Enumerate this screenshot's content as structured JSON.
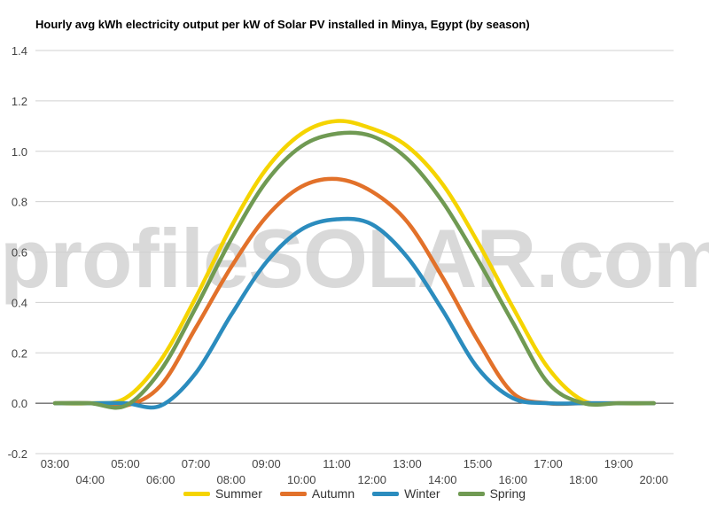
{
  "chart_data": {
    "type": "line",
    "title": "Hourly avg kWh electricity output per kW of Solar PV installed in Minya, Egypt (by season)",
    "watermark": "profileSOLAR.com",
    "ylim": [
      -0.2,
      1.4
    ],
    "y_ticks": [
      "1.4",
      "1.2",
      "1.0",
      "0.8",
      "0.6",
      "0.4",
      "0.2",
      "0.0",
      "-0.2"
    ],
    "x": [
      "03:00",
      "04:00",
      "05:00",
      "06:00",
      "07:00",
      "08:00",
      "09:00",
      "10:00",
      "11:00",
      "12:00",
      "13:00",
      "14:00",
      "15:00",
      "16:00",
      "17:00",
      "18:00",
      "19:00",
      "20:00"
    ],
    "series": [
      {
        "name": "Summer",
        "color": "#f5d400",
        "values": [
          0.0,
          0.0,
          0.02,
          0.17,
          0.42,
          0.7,
          0.93,
          1.07,
          1.12,
          1.09,
          1.02,
          0.87,
          0.64,
          0.38,
          0.14,
          0.01,
          0.0,
          0.0
        ]
      },
      {
        "name": "Autumn",
        "color": "#e2712a",
        "values": [
          0.0,
          0.0,
          -0.01,
          0.07,
          0.3,
          0.54,
          0.74,
          0.86,
          0.89,
          0.84,
          0.72,
          0.5,
          0.25,
          0.04,
          0.0,
          0.0,
          0.0,
          0.0
        ]
      },
      {
        "name": "Winter",
        "color": "#2b8cbe",
        "values": [
          0.0,
          0.0,
          0.0,
          -0.01,
          0.12,
          0.35,
          0.56,
          0.69,
          0.73,
          0.71,
          0.58,
          0.37,
          0.14,
          0.02,
          0.0,
          0.0,
          0.0,
          0.0
        ]
      },
      {
        "name": "Spring",
        "color": "#709a53",
        "values": [
          0.0,
          0.0,
          -0.01,
          0.13,
          0.38,
          0.65,
          0.88,
          1.02,
          1.07,
          1.06,
          0.97,
          0.8,
          0.57,
          0.32,
          0.08,
          0.0,
          0.0,
          0.0
        ]
      }
    ],
    "grid": true,
    "legend_position": "bottom"
  }
}
